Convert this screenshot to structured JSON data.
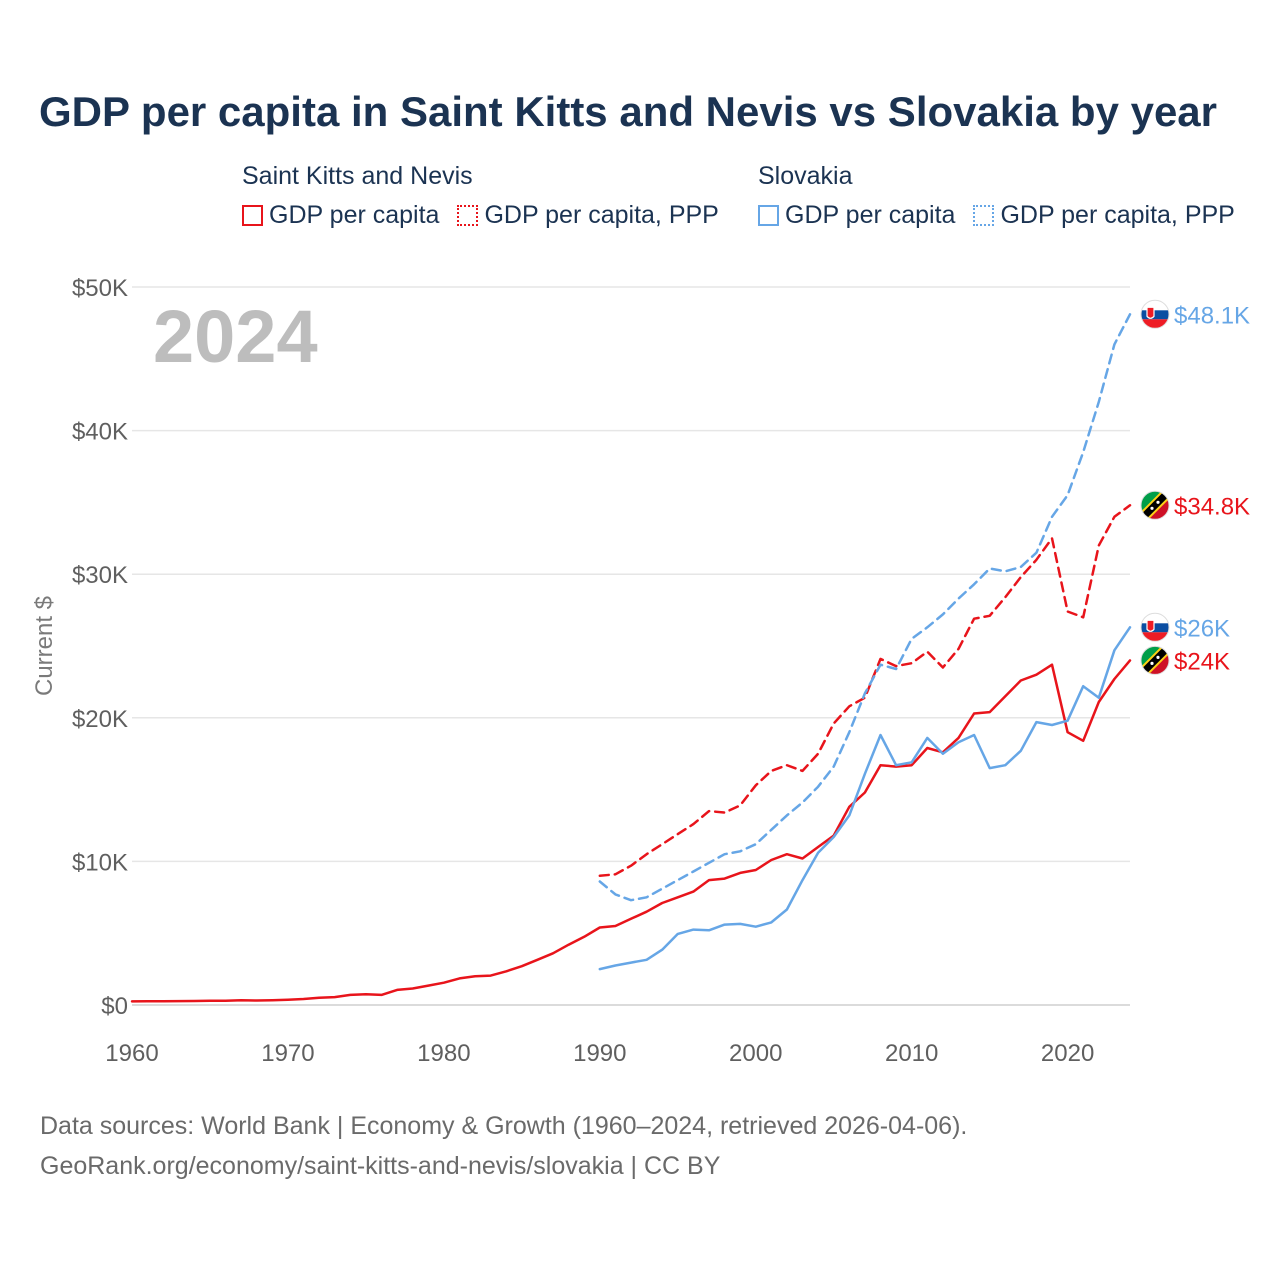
{
  "chart_data": {
    "type": "line",
    "title": "GDP per capita in Saint Kitts and Nevis vs Slovakia by year",
    "ylabel": "Current $",
    "xlabel": "",
    "xlim": [
      1960,
      2024
    ],
    "ylim": [
      0,
      50000
    ],
    "x_ticks": [
      1960,
      1970,
      1980,
      1990,
      2000,
      2010,
      2020
    ],
    "y_ticks": [
      0,
      10000,
      20000,
      30000,
      40000,
      50000
    ],
    "y_tick_labels": [
      "$0",
      "$10K",
      "$20K",
      "$30K",
      "$40K",
      "$50K"
    ],
    "year_watermark": "2024",
    "legend_groups": [
      {
        "name": "Saint Kitts and Nevis",
        "items": [
          "GDP per capita",
          "GDP per capita, PPP"
        ]
      },
      {
        "name": "Slovakia",
        "items": [
          "GDP per capita",
          "GDP per capita, PPP"
        ]
      }
    ],
    "series": [
      {
        "name": "Saint Kitts and Nevis — GDP per capita",
        "country": "Saint Kitts and Nevis",
        "measure": "GDP per capita",
        "color": "#e8141b",
        "dash": "solid",
        "end_label": "$24K",
        "x": [
          1960,
          1961,
          1962,
          1963,
          1964,
          1965,
          1966,
          1967,
          1968,
          1969,
          1970,
          1971,
          1972,
          1973,
          1974,
          1975,
          1976,
          1977,
          1978,
          1979,
          1980,
          1981,
          1982,
          1983,
          1984,
          1985,
          1986,
          1987,
          1988,
          1989,
          1990,
          1991,
          1992,
          1993,
          1994,
          1995,
          1996,
          1997,
          1998,
          1999,
          2000,
          2001,
          2002,
          2003,
          2004,
          2005,
          2006,
          2007,
          2008,
          2009,
          2010,
          2011,
          2012,
          2013,
          2014,
          2015,
          2016,
          2017,
          2018,
          2019,
          2020,
          2021,
          2022,
          2023,
          2024
        ],
        "values": [
          250,
          255,
          260,
          270,
          280,
          290,
          300,
          330,
          310,
          330,
          360,
          420,
          500,
          550,
          700,
          750,
          700,
          1050,
          1150,
          1350,
          1550,
          1850,
          2000,
          2050,
          2350,
          2700,
          3150,
          3600,
          4200,
          4750,
          5400,
          5500,
          6000,
          6500,
          7100,
          7500,
          7900,
          8700,
          8800,
          9200,
          9400,
          10100,
          10500,
          10200,
          11000,
          11800,
          13800,
          14800,
          16700,
          16600,
          16700,
          17900,
          17600,
          18600,
          20300,
          20400,
          21500,
          22600,
          23000,
          23700,
          19000,
          18400,
          21100,
          22700,
          24000
        ]
      },
      {
        "name": "Saint Kitts and Nevis — GDP per capita, PPP",
        "country": "Saint Kitts and Nevis",
        "measure": "GDP per capita, PPP",
        "color": "#e8141b",
        "dash": "dashed",
        "end_label": "$34.8K",
        "x": [
          1990,
          1991,
          1992,
          1993,
          1994,
          1995,
          1996,
          1997,
          1998,
          1999,
          2000,
          2001,
          2002,
          2003,
          2004,
          2005,
          2006,
          2007,
          2008,
          2009,
          2010,
          2011,
          2012,
          2013,
          2014,
          2015,
          2016,
          2017,
          2018,
          2019,
          2020,
          2021,
          2022,
          2023,
          2024
        ],
        "values": [
          9000,
          9100,
          9700,
          10500,
          11200,
          11900,
          12600,
          13500,
          13400,
          13900,
          15300,
          16300,
          16700,
          16300,
          17500,
          19600,
          20800,
          21400,
          24100,
          23600,
          23800,
          24600,
          23500,
          24800,
          26900,
          27100,
          28400,
          29800,
          31000,
          32500,
          27400,
          27000,
          32000,
          34000,
          34800
        ]
      },
      {
        "name": "Slovakia — GDP per capita",
        "country": "Slovakia",
        "measure": "GDP per capita",
        "color": "#66a6e6",
        "dash": "solid",
        "end_label": "$26K",
        "x": [
          1990,
          1991,
          1992,
          1993,
          1994,
          1995,
          1996,
          1997,
          1998,
          1999,
          2000,
          2001,
          2002,
          2003,
          2004,
          2005,
          2006,
          2007,
          2008,
          2009,
          2010,
          2011,
          2012,
          2013,
          2014,
          2015,
          2016,
          2017,
          2018,
          2019,
          2020,
          2021,
          2022,
          2023,
          2024
        ],
        "values": [
          2500,
          2750,
          2950,
          3150,
          3850,
          4950,
          5250,
          5200,
          5600,
          5650,
          5450,
          5750,
          6650,
          8700,
          10600,
          11700,
          13200,
          16100,
          18800,
          16700,
          16900,
          18600,
          17500,
          18300,
          18800,
          16500,
          16700,
          17700,
          19700,
          19500,
          19800,
          22200,
          21400,
          24700,
          26300
        ]
      },
      {
        "name": "Slovakia — GDP per capita, PPP",
        "country": "Slovakia",
        "measure": "GDP per capita, PPP",
        "color": "#66a6e6",
        "dash": "dashed",
        "end_label": "$48.1K",
        "x": [
          1990,
          1991,
          1992,
          1993,
          1994,
          1995,
          1996,
          1997,
          1998,
          1999,
          2000,
          2001,
          2002,
          2003,
          2004,
          2005,
          2006,
          2007,
          2008,
          2009,
          2010,
          2011,
          2012,
          2013,
          2014,
          2015,
          2016,
          2017,
          2018,
          2019,
          2020,
          2021,
          2022,
          2023,
          2024
        ],
        "values": [
          8600,
          7700,
          7300,
          7500,
          8100,
          8700,
          9300,
          9900,
          10500,
          10700,
          11200,
          12200,
          13200,
          14100,
          15200,
          16600,
          19000,
          21700,
          23700,
          23400,
          25500,
          26300,
          27200,
          28300,
          29300,
          30400,
          30200,
          30500,
          31500,
          34000,
          35500,
          38500,
          42000,
          46000,
          48100
        ]
      }
    ]
  },
  "footer": {
    "line1": "Data sources: World Bank | Economy & Growth (1960–2024, retrieved 2026-04-06).",
    "line2": "GeoRank.org/economy/saint-kitts-and-nevis/slovakia | CC BY"
  },
  "colors": {
    "saint_kitts": "#e8141b",
    "slovakia": "#66a6e6",
    "title": "#1b3352",
    "axis_text": "#5f5f5f",
    "grid": "#e6e6e6",
    "watermark": "#bdbdbd"
  },
  "icons": {
    "saint_kitts_flag": "saint-kitts-flag-icon",
    "slovakia_flag": "slovakia-flag-icon"
  }
}
